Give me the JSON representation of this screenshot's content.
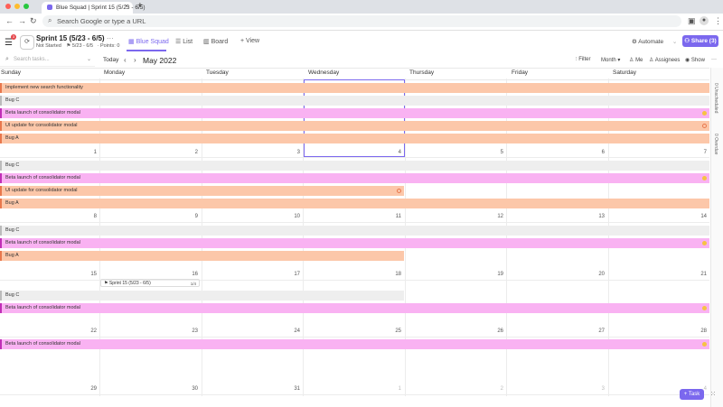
{
  "browser": {
    "tab_title": "Blue Squad | Sprint 15 (5/23 - 6/5)",
    "tab_close": "×",
    "new_tab": "+",
    "address_placeholder": "Search Google or type a URL",
    "colors": {
      "close": "#ff5f57",
      "min": "#febc2e",
      "max": "#28c840"
    }
  },
  "header": {
    "badge": "3",
    "sprint_icon": "⟳",
    "sprint_title": "Sprint 15 (5/23 - 6/5)",
    "sprint_title_menu": "···",
    "status": "Not Started",
    "dates": "5/23 - 6/5",
    "points": "Points: 0",
    "views": [
      "Blue Squad",
      "List",
      "Board",
      "+ View"
    ],
    "automate": "Automate",
    "share": "Share (3)"
  },
  "toolbar": {
    "search_placeholder": "Search tasks...",
    "today": "Today",
    "month_label": "May 2022",
    "filter": "Filter",
    "month": "Month",
    "me": "Me",
    "assignees": "Assignees",
    "show": "Show",
    "more": "···"
  },
  "calendar": {
    "day_names": [
      "Sunday",
      "Monday",
      "Tuesday",
      "Wednesday",
      "Thursday",
      "Friday",
      "Saturday"
    ],
    "weeks": [
      [
        "1",
        "2",
        "3",
        "4",
        "5",
        "6",
        "7"
      ],
      [
        "8",
        "9",
        "10",
        "11",
        "12",
        "13",
        "14"
      ],
      [
        "15",
        "16",
        "17",
        "18",
        "19",
        "20",
        "21"
      ],
      [
        "22",
        "23",
        "24",
        "25",
        "26",
        "27",
        "28"
      ],
      [
        "29",
        "30",
        "31",
        "1",
        "2",
        "3",
        "4"
      ]
    ],
    "tasks": {
      "t1": "Implement new search functionality",
      "t2": "Bug C",
      "t3": "Beta launch of consolidator modal",
      "t4": "UI update for consolidator modal",
      "t5": "Bug A"
    },
    "sprint_chip": "Sprint 15 (5/23 - 6/5)",
    "sprint_chip_count": "1/4",
    "colors": {
      "orange": "#fcc7a9",
      "pink": "#f9b2f2",
      "grey": "#eeeeee",
      "accent": "#7b68ee"
    }
  },
  "right_panel": {
    "unscheduled": "Unscheduled",
    "overdue": "Overdue",
    "unscheduled_count": "0",
    "overdue_count": "0"
  },
  "fab": {
    "task": "+ Task"
  }
}
